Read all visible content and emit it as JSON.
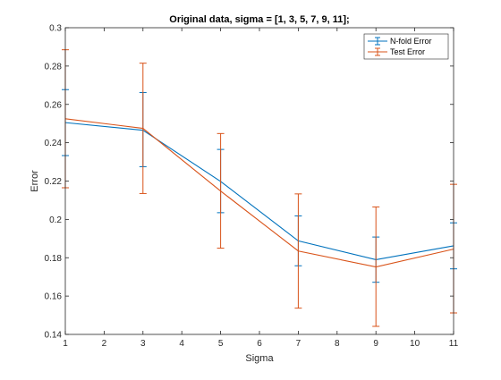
{
  "chart_data": {
    "type": "line",
    "title": "Original data, sigma = [1, 3, 5, 7, 9, 11];",
    "xlabel": "Sigma",
    "ylabel": "Error",
    "xlim": [
      1,
      11
    ],
    "ylim": [
      0.14,
      0.3
    ],
    "xticks": [
      1,
      2,
      3,
      4,
      5,
      6,
      7,
      8,
      9,
      10,
      11
    ],
    "yticks": [
      0.14,
      0.16,
      0.18,
      0.2,
      0.22,
      0.24,
      0.26,
      0.28,
      0.3
    ],
    "ytick_labels": [
      "0.14",
      "0.16",
      "0.18",
      "0.2",
      "0.22",
      "0.24",
      "0.26",
      "0.28",
      "0.3"
    ],
    "grid": false,
    "legend_position": "top-right",
    "x": [
      1,
      3,
      5,
      7,
      9,
      11
    ],
    "series": [
      {
        "name": "N-fold Error",
        "color": "#0072bd",
        "values": [
          0.2505,
          0.2465,
          0.2198,
          0.1888,
          0.179,
          0.1862
        ],
        "err_low": [
          0.2333,
          0.2275,
          0.2035,
          0.1758,
          0.1672,
          0.1742
        ],
        "err_high": [
          0.2677,
          0.2662,
          0.2365,
          0.2018,
          0.1908,
          0.1982
        ]
      },
      {
        "name": "Test Error",
        "color": "#d95319",
        "values": [
          0.2525,
          0.2475,
          0.2148,
          0.1835,
          0.1752,
          0.1845
        ],
        "err_low": [
          0.2165,
          0.2135,
          0.185,
          0.1537,
          0.1442,
          0.1512
        ],
        "err_high": [
          0.2885,
          0.2815,
          0.2448,
          0.2133,
          0.2065,
          0.2183
        ]
      }
    ]
  }
}
